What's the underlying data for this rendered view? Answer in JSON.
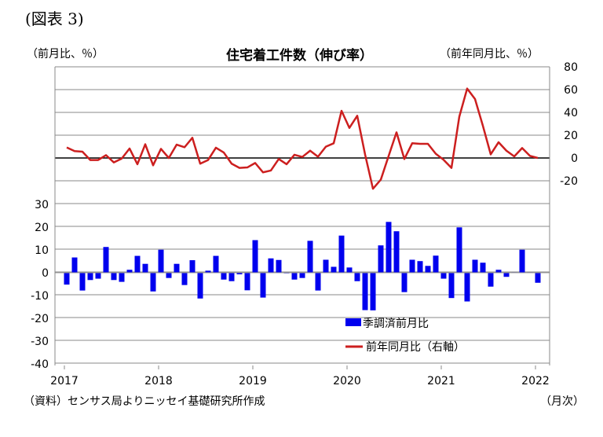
{
  "figure_label": "(図表 3)",
  "source_note": "（資料）センサス局よりニッセイ基礎研究所作成",
  "xunit": "（月次）",
  "chart_data": {
    "type": "bar+line",
    "title": "住宅着工件数（伸び率）",
    "ylabel_left": "（前月比、％）",
    "ylabel_right": "（前年同月比、％）",
    "x_start": "2017-01",
    "x_end": "2022-01",
    "x_ticks": [
      "2017",
      "2018",
      "2019",
      "2020",
      "2021",
      "2022"
    ],
    "yleft_ticks": [
      "30",
      "20",
      "10",
      "0",
      "-10",
      "-20",
      "-30",
      "-40"
    ],
    "yleft_range": [
      -40,
      30
    ],
    "yright_ticks": [
      "80",
      "60",
      "40",
      "20",
      "0",
      "-20"
    ],
    "yright_range": [
      -20,
      80
    ],
    "grid": true,
    "legend_position": "bottom-right",
    "series": [
      {
        "name": "季調済前月比",
        "axis": "left",
        "kind": "bar",
        "color": "#0000ee",
        "values": [
          -5.2,
          6.7,
          -7.8,
          -3.2,
          -2.6,
          11.3,
          -3.2,
          -4.0,
          1.3,
          7.4,
          3.9,
          -8.2,
          10.1,
          -2.3,
          3.9,
          -5.4,
          5.5,
          -11.3,
          0.9,
          7.4,
          -3.0,
          -3.7,
          -0.7,
          -7.7,
          14.3,
          -10.9,
          6.3,
          5.6,
          -0.2,
          -3.0,
          -2.3,
          14.0,
          -7.8,
          5.7,
          2.6,
          16.3,
          2.3,
          -3.7,
          -16.4,
          -16.5,
          12.0,
          22.3,
          18.2,
          -8.5,
          5.7,
          5.1,
          3.0,
          7.5,
          -2.6,
          -11.1,
          19.9,
          -12.6,
          5.7,
          4.4,
          -6.1,
          1.3,
          -1.8,
          0.2,
          10.1,
          0.2,
          -4.4
        ]
      },
      {
        "name": "前年同月比（右軸）",
        "axis": "right",
        "kind": "line",
        "color": "#cc1f1f",
        "values": [
          9.2,
          6,
          5.5,
          -1.8,
          -1.8,
          2.5,
          -3.9,
          -0.5,
          8.3,
          -5.5,
          12,
          -6.4,
          8,
          0,
          11.7,
          9.4,
          17.7,
          -5,
          -1.8,
          9,
          4.8,
          -5,
          -8.7,
          -8.3,
          -4.4,
          -12.6,
          -11,
          -0.9,
          -5.5,
          2.8,
          0.9,
          6.4,
          1.1,
          9.9,
          12.9,
          41.4,
          26.4,
          37,
          3,
          -27,
          -19,
          1.8,
          22.5,
          -0.9,
          12.9,
          12.4,
          12.4,
          3.7,
          -1.6,
          -8.7,
          36.3,
          60.9,
          51.7,
          28.3,
          3.2,
          13.8,
          6.4,
          1.4,
          8.7,
          1.8,
          0
        ]
      }
    ]
  }
}
